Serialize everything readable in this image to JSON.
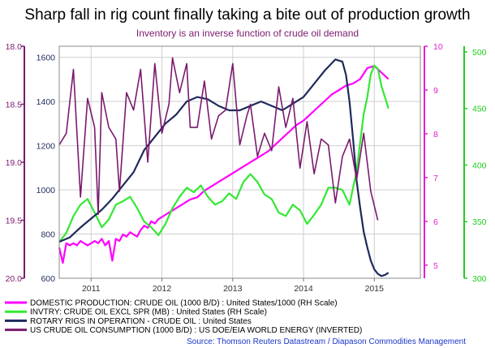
{
  "chart_data": {
    "type": "line",
    "title": "Sharp fall in rig count finally taking a bite out of production growth",
    "subtitle": "Inventory is an inverse function of crude oil demand",
    "source": "Source: Thomson Reuters Datastream / Diapason Commodities Management",
    "x_ticks": [
      2011,
      2012,
      2013,
      2014,
      2015
    ],
    "x_range": [
      2010.55,
      2015.65
    ],
    "axes": {
      "consumption": {
        "color": "#7a1a6e",
        "range": [
          18.0,
          20.0
        ],
        "ticks": [
          "18.0",
          "18.5",
          "19.0",
          "19.5",
          "20.0"
        ],
        "inverted": true
      },
      "rigs": {
        "color": "#1f2a5a",
        "range": [
          600,
          1650
        ],
        "ticks": [
          "600",
          "800",
          "1000",
          "1200",
          "1400",
          "1600"
        ]
      },
      "production": {
        "color": "#e020d0",
        "range": [
          4.7,
          10.0
        ],
        "ticks": [
          "5",
          "6",
          "7",
          "8",
          "9",
          "10"
        ]
      },
      "inventory": {
        "color": "#22cc22",
        "range": [
          300,
          505
        ],
        "ticks": [
          "300",
          "350",
          "400",
          "450",
          "500"
        ]
      }
    },
    "series": [
      {
        "name": "DOMESTIC PRODUCTION: CRUDE OIL (1000 B/D) : United States/1000 (RH Scale)",
        "axis": "production",
        "color": "#ff00ff",
        "x": [
          2010.55,
          2010.6,
          2010.65,
          2010.7,
          2010.75,
          2010.8,
          2010.85,
          2010.9,
          2010.95,
          2011.0,
          2011.05,
          2011.1,
          2011.15,
          2011.2,
          2011.25,
          2011.3,
          2011.35,
          2011.4,
          2011.45,
          2011.5,
          2011.55,
          2011.6,
          2011.65,
          2011.7,
          2011.75,
          2011.8,
          2011.85,
          2011.9,
          2011.95,
          2012.0,
          2012.1,
          2012.2,
          2012.3,
          2012.4,
          2012.5,
          2012.6,
          2012.7,
          2012.8,
          2012.9,
          2013.0,
          2013.1,
          2013.2,
          2013.3,
          2013.4,
          2013.5,
          2013.6,
          2013.7,
          2013.8,
          2013.9,
          2014.0,
          2014.1,
          2014.2,
          2014.3,
          2014.4,
          2014.5,
          2014.6,
          2014.7,
          2014.8,
          2014.9,
          2015.0,
          2015.1,
          2015.2
        ],
        "values": [
          5.4,
          5.05,
          5.5,
          5.45,
          5.5,
          5.45,
          5.55,
          5.5,
          5.45,
          5.5,
          5.55,
          5.5,
          5.6,
          5.45,
          5.55,
          5.1,
          5.6,
          5.55,
          5.7,
          5.65,
          5.75,
          5.7,
          5.65,
          5.8,
          5.9,
          5.85,
          6.0,
          5.95,
          6.05,
          6.1,
          6.2,
          6.3,
          6.4,
          6.5,
          6.55,
          6.7,
          6.8,
          6.9,
          7.0,
          7.1,
          7.2,
          7.3,
          7.4,
          7.5,
          7.6,
          7.75,
          7.9,
          8.05,
          8.2,
          8.3,
          8.45,
          8.6,
          8.75,
          8.9,
          9.0,
          9.1,
          9.15,
          9.25,
          9.5,
          9.55,
          9.4,
          9.25
        ]
      },
      {
        "name": "INVTRY: CRUDE OIL EXCL SPR (MB) : United States (RH Scale)",
        "axis": "inventory",
        "color": "#33e833",
        "x": [
          2010.55,
          2010.65,
          2010.75,
          2010.85,
          2010.95,
          2011.05,
          2011.15,
          2011.25,
          2011.35,
          2011.45,
          2011.55,
          2011.65,
          2011.75,
          2011.85,
          2011.95,
          2012.05,
          2012.15,
          2012.25,
          2012.35,
          2012.45,
          2012.55,
          2012.65,
          2012.75,
          2012.85,
          2012.95,
          2013.05,
          2013.15,
          2013.25,
          2013.35,
          2013.45,
          2013.55,
          2013.65,
          2013.75,
          2013.85,
          2013.95,
          2014.05,
          2014.15,
          2014.25,
          2014.35,
          2014.45,
          2014.55,
          2014.65,
          2014.75,
          2014.8,
          2014.85,
          2014.9,
          2014.95,
          2015.0,
          2015.05,
          2015.1,
          2015.15,
          2015.2
        ],
        "values": [
          332,
          340,
          355,
          365,
          370,
          358,
          345,
          352,
          365,
          368,
          372,
          362,
          350,
          345,
          338,
          348,
          362,
          372,
          380,
          376,
          382,
          372,
          365,
          368,
          375,
          370,
          385,
          392,
          385,
          374,
          370,
          358,
          355,
          365,
          360,
          348,
          356,
          365,
          380,
          380,
          378,
          365,
          395,
          420,
          445,
          460,
          480,
          488,
          485,
          470,
          460,
          450
        ]
      },
      {
        "name": "ROTARY RIGS IN OPERATION - CRUDE OIL : United States",
        "axis": "rigs",
        "color": "#1f2a5a",
        "x": [
          2010.55,
          2010.7,
          2010.85,
          2011.0,
          2011.15,
          2011.3,
          2011.45,
          2011.6,
          2011.75,
          2011.9,
          2012.05,
          2012.2,
          2012.35,
          2012.5,
          2012.65,
          2012.8,
          2012.95,
          2013.1,
          2013.25,
          2013.4,
          2013.55,
          2013.7,
          2013.85,
          2014.0,
          2014.15,
          2014.3,
          2014.45,
          2014.55,
          2014.6,
          2014.65,
          2014.7,
          2014.75,
          2014.8,
          2014.85,
          2014.9,
          2014.95,
          2015.0,
          2015.05,
          2015.1,
          2015.15,
          2015.2
        ],
        "values": [
          765,
          785,
          830,
          870,
          910,
          960,
          1020,
          1080,
          1180,
          1240,
          1300,
          1340,
          1400,
          1420,
          1410,
          1380,
          1360,
          1360,
          1380,
          1400,
          1380,
          1360,
          1390,
          1420,
          1480,
          1540,
          1590,
          1580,
          1520,
          1400,
          1230,
          1040,
          920,
          810,
          740,
          680,
          640,
          620,
          610,
          615,
          625
        ]
      },
      {
        "name": "US CRUDE OIL CONSUMPTION (1000 B/D) : US DOE/EIA WORLD ENERGY (INVERTED)",
        "axis": "consumption",
        "color": "#7a1a6e",
        "x": [
          2010.55,
          2010.65,
          2010.75,
          2010.85,
          2010.95,
          2011.05,
          2011.1,
          2011.15,
          2011.25,
          2011.35,
          2011.4,
          2011.5,
          2011.6,
          2011.7,
          2011.8,
          2011.9,
          2012.0,
          2012.1,
          2012.15,
          2012.25,
          2012.35,
          2012.4,
          2012.5,
          2012.6,
          2012.7,
          2012.8,
          2012.9,
          2013.0,
          2013.1,
          2013.2,
          2013.25,
          2013.35,
          2013.45,
          2013.55,
          2013.65,
          2013.75,
          2013.85,
          2013.95,
          2014.05,
          2014.15,
          2014.25,
          2014.35,
          2014.45,
          2014.55,
          2014.65,
          2014.75,
          2014.85,
          2014.95,
          2015.05
        ],
        "values": [
          18.85,
          18.75,
          18.2,
          19.3,
          18.45,
          18.7,
          19.45,
          18.4,
          18.7,
          18.8,
          19.25,
          18.4,
          18.55,
          18.2,
          19.0,
          18.15,
          18.75,
          18.5,
          18.1,
          18.4,
          18.15,
          18.7,
          18.7,
          18.3,
          18.8,
          18.6,
          18.55,
          18.15,
          18.85,
          18.6,
          18.5,
          18.95,
          18.75,
          18.9,
          18.35,
          18.7,
          18.45,
          19.05,
          18.65,
          19.1,
          18.8,
          18.85,
          19.35,
          18.95,
          18.8,
          19.15,
          18.75,
          19.25,
          19.5
        ]
      }
    ],
    "legend_placement": "bottom-left"
  }
}
